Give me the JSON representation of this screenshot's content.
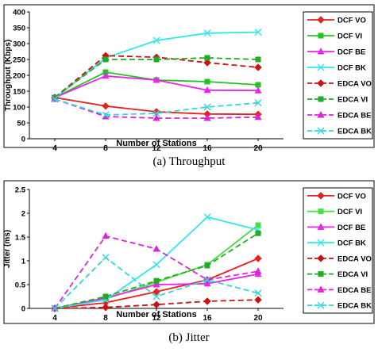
{
  "chart_data": [
    {
      "type": "line",
      "caption": "(a) Throughput",
      "xlabel": "Number of Stations",
      "ylabel": "Throughput (Kbps)",
      "categories": [
        "4",
        "8",
        "12",
        "16",
        "20"
      ],
      "yticks": [
        "0",
        "50",
        "100",
        "150",
        "200",
        "250",
        "300",
        "350",
        "400"
      ],
      "ylim": [
        0,
        400
      ],
      "grid": false,
      "legend_position": "right",
      "series": [
        {
          "name": "DCF VO",
          "values": [
            130,
            103,
            85,
            78,
            77
          ],
          "color": "#e8201e",
          "marker": "diamond",
          "dashed": false
        },
        {
          "name": "DCF VI",
          "values": [
            130,
            210,
            185,
            180,
            170
          ],
          "color": "#22c422",
          "marker": "square",
          "dashed": false
        },
        {
          "name": "DCF BE",
          "values": [
            130,
            198,
            185,
            153,
            152
          ],
          "color": "#ee22ee",
          "marker": "triangle",
          "dashed": false
        },
        {
          "name": "DCF BK",
          "values": [
            128,
            255,
            310,
            333,
            336
          ],
          "color": "#33e6e6",
          "marker": "x",
          "dashed": false
        },
        {
          "name": "EDCA VO",
          "values": [
            130,
            262,
            257,
            240,
            225
          ],
          "color": "#cc1111",
          "marker": "diamond",
          "dashed": true
        },
        {
          "name": "EDCA VI",
          "values": [
            130,
            250,
            250,
            255,
            250
          ],
          "color": "#22aa22",
          "marker": "square",
          "dashed": true
        },
        {
          "name": "EDCA BE",
          "values": [
            125,
            70,
            65,
            65,
            68
          ],
          "color": "#dd22dd",
          "marker": "triangle",
          "dashed": true
        },
        {
          "name": "EDCA BK",
          "values": [
            125,
            75,
            80,
            100,
            113
          ],
          "color": "#33d6d6",
          "marker": "x",
          "dashed": true
        }
      ]
    },
    {
      "type": "line",
      "caption": "(b) Jitter",
      "xlabel": "Number of Stations",
      "ylabel": "Jitter (ms)",
      "categories": [
        "4",
        "8",
        "12",
        "16",
        "20"
      ],
      "yticks": [
        "0",
        "0.5",
        "1",
        "1.5",
        "2",
        "2.5"
      ],
      "ylim": [
        0,
        2.5
      ],
      "grid": false,
      "legend_position": "right",
      "series": [
        {
          "name": "DCF VO",
          "values": [
            0,
            0.12,
            0.35,
            0.6,
            1.05
          ],
          "color": "#e8201e",
          "marker": "diamond",
          "dashed": false
        },
        {
          "name": "DCF VI",
          "values": [
            0,
            0.2,
            0.55,
            0.92,
            1.75
          ],
          "color": "#44dd44",
          "marker": "square",
          "dashed": false
        },
        {
          "name": "DCF BE",
          "values": [
            0,
            0.22,
            0.5,
            0.52,
            0.72
          ],
          "color": "#ee22ee",
          "marker": "triangle",
          "dashed": false
        },
        {
          "name": "DCF BK",
          "values": [
            0,
            0.18,
            0.92,
            1.92,
            1.65
          ],
          "color": "#33e6e6",
          "marker": "x",
          "dashed": false
        },
        {
          "name": "EDCA VO",
          "values": [
            0,
            0.02,
            0.08,
            0.15,
            0.18
          ],
          "color": "#cc1111",
          "marker": "diamond",
          "dashed": true
        },
        {
          "name": "EDCA VI",
          "values": [
            0,
            0.25,
            0.58,
            0.9,
            1.58
          ],
          "color": "#22aa22",
          "marker": "square",
          "dashed": true
        },
        {
          "name": "EDCA BE",
          "values": [
            0,
            1.52,
            1.25,
            0.6,
            0.78
          ],
          "color": "#dd22dd",
          "marker": "triangle",
          "dashed": true
        },
        {
          "name": "EDCA BK",
          "values": [
            0,
            1.07,
            0.25,
            0.6,
            0.32
          ],
          "color": "#33d6d6",
          "marker": "x",
          "dashed": true
        }
      ]
    }
  ]
}
